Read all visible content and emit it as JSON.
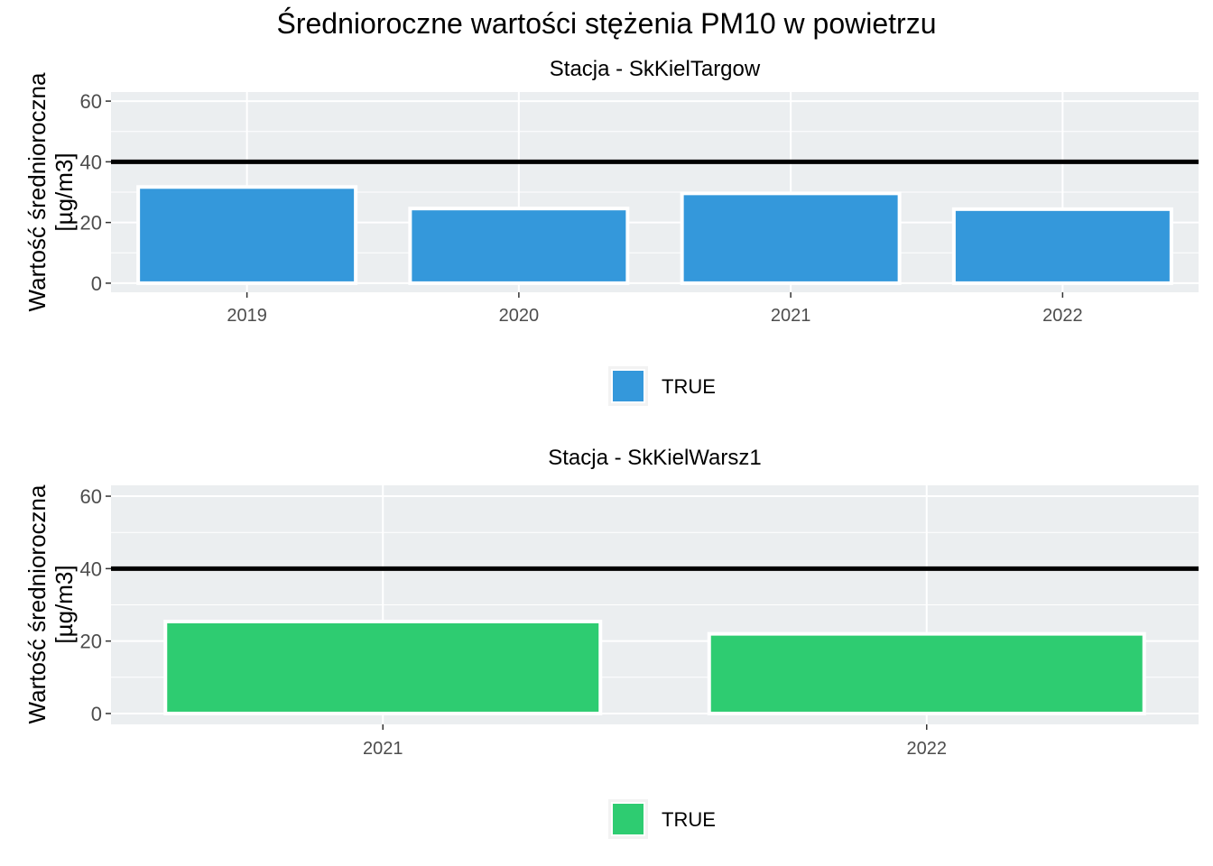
{
  "title": "Średnioroczne wartości stężenia PM10 w powietrzu",
  "chart_data": [
    {
      "type": "bar",
      "title": "Stacja - SkKielTargow",
      "ylabel_line1": "Wartość średnioroczna",
      "ylabel_line2": "[µg/m3]",
      "categories": [
        "2019",
        "2020",
        "2021",
        "2022"
      ],
      "values": [
        31.7,
        24.6,
        29.6,
        24.4
      ],
      "ylim": [
        0,
        60
      ],
      "yticks": [
        0,
        20,
        40,
        60
      ],
      "reference_line": 40,
      "bar_color": "#3498db",
      "legend": [
        {
          "label": "TRUE",
          "color": "#3498db"
        }
      ],
      "grid": true,
      "legend_position": "bottom"
    },
    {
      "type": "bar",
      "title": "Stacja - SkKielWarsz1",
      "ylabel_line1": "Wartość średnioroczna",
      "ylabel_line2": "[µg/m3]",
      "categories": [
        "2021",
        "2022"
      ],
      "values": [
        25.4,
        22.0
      ],
      "ylim": [
        0,
        60
      ],
      "yticks": [
        0,
        20,
        40,
        60
      ],
      "reference_line": 40,
      "bar_color": "#2ecc71",
      "legend": [
        {
          "label": "TRUE",
          "color": "#2ecc71"
        }
      ],
      "grid": true,
      "legend_position": "bottom"
    }
  ]
}
